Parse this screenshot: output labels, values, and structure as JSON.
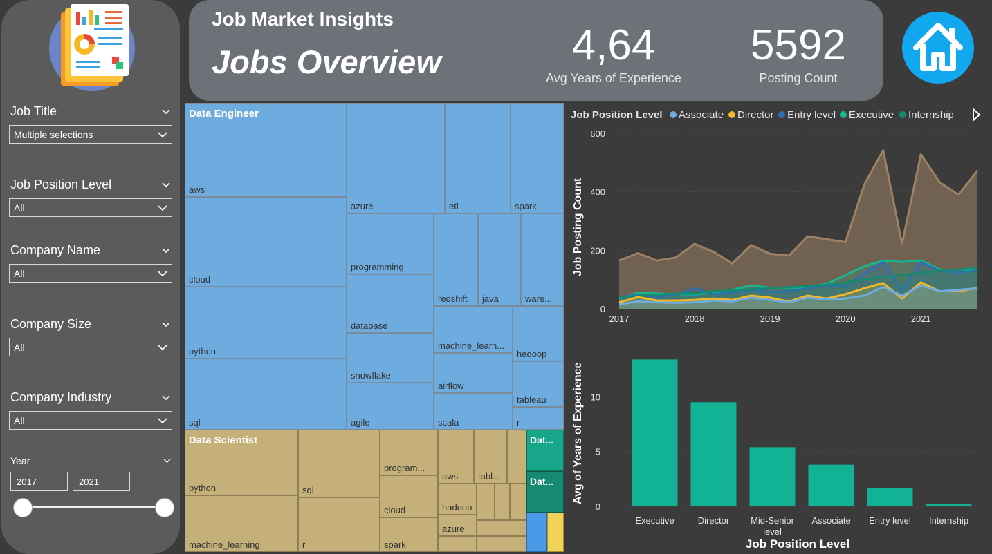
{
  "header": {
    "subtitle": "Job Market Insights",
    "title": "Jobs Overview",
    "kpis": [
      {
        "value": "4,64",
        "label": "Avg Years of Experience"
      },
      {
        "value": "5592",
        "label": "Posting Count"
      }
    ]
  },
  "icons": {
    "logo": "report-document-icon",
    "home": "home-icon",
    "filter_chevron": "chevron-down-icon"
  },
  "filters": [
    {
      "label": "Job Title",
      "value": "Multiple selections"
    },
    {
      "label": "Job Position Level",
      "value": "All"
    },
    {
      "label": "Company Name",
      "value": "All"
    },
    {
      "label": "Company Size",
      "value": "All"
    },
    {
      "label": "Company Industry",
      "value": "All"
    }
  ],
  "year_filter": {
    "label": "Year",
    "from": "2017",
    "to": "2021"
  },
  "treemap": {
    "groups": [
      {
        "name": "Data Engineer",
        "color": "#6eace0",
        "items": [
          "aws",
          "cloud",
          "python",
          "sql",
          "azure",
          "etl",
          "spark",
          "programming",
          "redshift",
          "java",
          "ware...",
          "database",
          "machine_learn...",
          "hadoop",
          "snowflake",
          "airflow",
          "tableau",
          "agile",
          "scala",
          "r"
        ]
      },
      {
        "name": "Data Scientist",
        "color": "#c5b07a",
        "items": [
          "python",
          "machine_learning",
          "sql",
          "r",
          "program...",
          "cloud",
          "spark",
          "aws",
          "tabl...",
          "hadoop",
          "azure"
        ]
      },
      {
        "name": "Dat...",
        "color": "#17a68a",
        "items": []
      },
      {
        "name": "Dat...",
        "color": "#168a70",
        "items": []
      }
    ]
  },
  "colors": {
    "associate": "#6eace0",
    "director": "#f5b925",
    "entry_level": "#2f6eb8",
    "executive": "#17b890",
    "internship": "#168a70",
    "total_area": "#9c8264",
    "bar": "#12b294"
  },
  "chart_data": [
    {
      "type": "area",
      "legend_title": "Job Position Level",
      "legend": [
        "Associate",
        "Director",
        "Entry level",
        "Executive",
        "Internship"
      ],
      "legend_position": "top",
      "x": [
        "2017",
        "2017.25",
        "2017.5",
        "2017.75",
        "2018",
        "2018.25",
        "2018.5",
        "2018.75",
        "2019",
        "2019.25",
        "2019.5",
        "2019.75",
        "2020",
        "2020.25",
        "2020.5",
        "2020.75",
        "2021",
        "2021.25",
        "2021.5",
        "2021.75"
      ],
      "x_ticks": [
        "2017",
        "2018",
        "2019",
        "2020",
        "2021"
      ],
      "ylabel": "Job Posting Count",
      "ylim": [
        0,
        600
      ],
      "y_ticks": [
        0,
        200,
        400,
        600
      ],
      "series": [
        {
          "values": [
            165,
            190,
            165,
            175,
            222,
            195,
            155,
            218,
            188,
            182,
            248,
            238,
            228,
            425,
            542,
            222,
            528,
            432,
            390,
            473
          ]
        },
        {
          "name": "Executive",
          "values": [
            35,
            55,
            52,
            50,
            48,
            55,
            65,
            80,
            72,
            70,
            75,
            85,
            115,
            145,
            165,
            160,
            165,
            135,
            125,
            140
          ]
        },
        {
          "name": "Entry level",
          "values": [
            40,
            48,
            40,
            48,
            70,
            50,
            55,
            65,
            58,
            60,
            70,
            80,
            75,
            120,
            160,
            65,
            160,
            130,
            125,
            130
          ]
        },
        {
          "name": "Internship",
          "values": [
            40,
            44,
            48,
            52,
            55,
            60,
            63,
            67,
            70,
            74,
            78,
            82,
            90,
            100,
            110,
            115,
            123,
            130,
            135,
            140
          ]
        },
        {
          "name": "Director",
          "values": [
            22,
            40,
            28,
            28,
            30,
            35,
            30,
            45,
            38,
            25,
            45,
            35,
            50,
            70,
            88,
            35,
            90,
            60,
            60,
            72
          ]
        },
        {
          "name": "Associate",
          "values": [
            15,
            25,
            22,
            20,
            22,
            28,
            25,
            38,
            30,
            22,
            38,
            32,
            35,
            45,
            75,
            45,
            80,
            60,
            65,
            70
          ]
        }
      ]
    },
    {
      "type": "bar",
      "categories": [
        "Executive",
        "Director",
        "Mid-Senior level",
        "Associate",
        "Entry level",
        "Internship"
      ],
      "values": [
        13.4,
        9.5,
        5.4,
        3.8,
        1.7,
        0.2
      ],
      "xlabel": "Job Position Level",
      "ylabel": "Avg of Years of Experience",
      "ylim": [
        0,
        15
      ],
      "y_ticks": [
        0,
        5,
        10
      ]
    }
  ]
}
